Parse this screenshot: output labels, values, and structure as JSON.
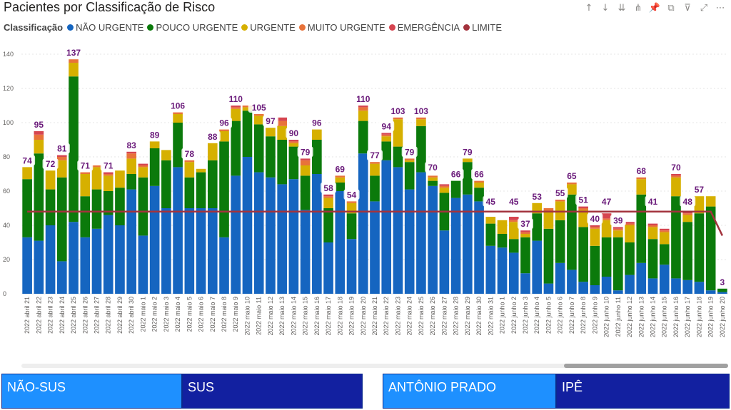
{
  "title": "Pacientes por Classificação de Risco",
  "toolbar": [
    {
      "name": "drill-up-icon",
      "glyph": "↑"
    },
    {
      "name": "drill-down-icon",
      "glyph": "↓"
    },
    {
      "name": "expand-down-icon",
      "glyph": "⇊"
    },
    {
      "name": "expand-all-icon",
      "glyph": "⋔"
    },
    {
      "name": "pin-icon",
      "glyph": "📌"
    },
    {
      "name": "copy-icon",
      "glyph": "⧉"
    },
    {
      "name": "filter-icon",
      "glyph": "⊽"
    },
    {
      "name": "focus-mode-icon",
      "glyph": "⤢"
    },
    {
      "name": "more-options-icon",
      "glyph": "⋯"
    }
  ],
  "legend": {
    "title": "Classificação",
    "items": [
      {
        "label": "NÃO URGENTE",
        "color": "#1565c0"
      },
      {
        "label": "POUCO URGENTE",
        "color": "#0b7a0b"
      },
      {
        "label": "URGENTE",
        "color": "#d6b000"
      },
      {
        "label": "MUITO URGENTE",
        "color": "#e8733a"
      },
      {
        "label": "EMERGÊNCIA",
        "color": "#d64550"
      },
      {
        "label": "LIMITE",
        "color": "#a3333d"
      }
    ]
  },
  "chart_data": {
    "type": "bar",
    "stacked": true,
    "ylim": [
      0,
      140
    ],
    "yticks": [
      0,
      20,
      40,
      60,
      80,
      100,
      120,
      140
    ],
    "categories": [
      "2022 abril 21",
      "2022 abril 22",
      "2022 abril 23",
      "2022 abril 24",
      "2022 abril 25",
      "2022 abril 26",
      "2022 abril 27",
      "2022 abril 28",
      "2022 abril 29",
      "2022 abril 30",
      "2022 maio 1",
      "2022 maio 2",
      "2022 maio 3",
      "2022 maio 4",
      "2022 maio 5",
      "2022 maio 6",
      "2022 maio 7",
      "2022 maio 8",
      "2022 maio 9",
      "2022 maio 10",
      "2022 maio 11",
      "2022 maio 12",
      "2022 maio 13",
      "2022 maio 14",
      "2022 maio 15",
      "2022 maio 16",
      "2022 maio 17",
      "2022 maio 18",
      "2022 maio 19",
      "2022 maio 20",
      "2022 maio 21",
      "2022 maio 22",
      "2022 maio 23",
      "2022 maio 24",
      "2022 maio 25",
      "2022 maio 26",
      "2022 maio 27",
      "2022 maio 28",
      "2022 maio 29",
      "2022 maio 30",
      "2022 maio 31",
      "2022 junho 1",
      "2022 junho 2",
      "2022 junho 3",
      "2022 junho 4",
      "2022 junho 5",
      "2022 junho 6",
      "2022 junho 7",
      "2022 junho 8",
      "2022 junho 9",
      "2022 junho 10",
      "2022 junho 11",
      "2022 junho 12",
      "2022 junho 13",
      "2022 junho 14",
      "2022 junho 15",
      "2022 junho 16",
      "2022 junho 17",
      "2022 junho 18",
      "2022 junho 19",
      "2022 junho 20"
    ],
    "series": [
      {
        "name": "NÃO URGENTE",
        "color": "#1565c0",
        "values": [
          33,
          31,
          40,
          19,
          42,
          33,
          38,
          46,
          40,
          61,
          34,
          63,
          50,
          74,
          50,
          50,
          50,
          33,
          69,
          80,
          71,
          68,
          64,
          67,
          49,
          70,
          30,
          60,
          32,
          82,
          54,
          78,
          74,
          61,
          71,
          63,
          37,
          56,
          58,
          54,
          28,
          27,
          24,
          12,
          31,
          6,
          18,
          14,
          7,
          5,
          10,
          2,
          11,
          18,
          9,
          17,
          9,
          8,
          7,
          2,
          1
        ]
      },
      {
        "name": "POUCO URGENTE",
        "color": "#0b7a0b",
        "values": [
          34,
          51,
          21,
          49,
          85,
          24,
          23,
          14,
          22,
          9,
          34,
          22,
          28,
          26,
          18,
          21,
          28,
          56,
          32,
          27,
          28,
          24,
          26,
          19,
          20,
          20,
          20,
          5,
          15,
          19,
          15,
          11,
          12,
          16,
          27,
          3,
          22,
          10,
          19,
          8,
          13,
          8,
          8,
          21,
          16,
          32,
          25,
          44,
          32,
          23,
          23,
          31,
          19,
          40,
          23,
          12,
          48,
          34,
          40,
          49,
          2
        ]
      },
      {
        "name": "URGENTE",
        "color": "#d6b000",
        "values": [
          7,
          8,
          11,
          10,
          8,
          13,
          13,
          9,
          10,
          9,
          6,
          4,
          6,
          5,
          9,
          2,
          10,
          6,
          7,
          2,
          5,
          5,
          8,
          2,
          6,
          6,
          6,
          3,
          6,
          6,
          7,
          3,
          16,
          1,
          4,
          2,
          3,
          0,
          2,
          3,
          4,
          8,
          10,
          2,
          6,
          10,
          11,
          6,
          10,
          10,
          10,
          4,
          10,
          9,
          7,
          7,
          11,
          4,
          10,
          6,
          0
        ]
      },
      {
        "name": "MUITO URGENTE",
        "color": "#e8733a",
        "values": [
          0,
          3,
          0,
          2,
          2,
          1,
          1,
          1,
          0,
          3,
          1,
          0,
          0,
          1,
          1,
          0,
          0,
          1,
          1,
          1,
          1,
          0,
          3,
          1,
          3,
          0,
          1,
          1,
          1,
          2,
          1,
          1,
          1,
          1,
          1,
          1,
          1,
          0,
          0,
          1,
          0,
          0,
          1,
          1,
          0,
          2,
          1,
          1,
          1,
          1,
          1,
          1,
          1,
          1,
          1,
          1,
          1,
          1,
          0,
          0,
          0
        ]
      },
      {
        "name": "EMERGÊNCIA",
        "color": "#d64550",
        "values": [
          0,
          2,
          0,
          1,
          0,
          0,
          0,
          1,
          0,
          1,
          1,
          0,
          0,
          0,
          0,
          0,
          0,
          0,
          1,
          0,
          0,
          0,
          2,
          1,
          1,
          0,
          1,
          0,
          0,
          1,
          0,
          1,
          0,
          0,
          0,
          0,
          1,
          0,
          0,
          0,
          0,
          0,
          2,
          1,
          0,
          0,
          0,
          0,
          1,
          1,
          3,
          1,
          1,
          0,
          1,
          1,
          1,
          1,
          0,
          0,
          0
        ]
      }
    ],
    "totals": [
      74,
      95,
      72,
      81,
      137,
      71,
      75,
      71,
      72,
      83,
      76,
      89,
      84,
      106,
      78,
      73,
      88,
      96,
      110,
      110,
      105,
      97,
      103,
      90,
      79,
      96,
      58,
      69,
      54,
      110,
      77,
      94,
      103,
      79,
      103,
      70,
      64,
      66,
      79,
      66,
      45,
      43,
      45,
      37,
      53,
      50,
      55,
      65,
      51,
      40,
      47,
      39,
      42,
      68,
      41,
      38,
      70,
      48,
      57,
      57,
      3
    ],
    "labeled_points": [
      {
        "index": 0,
        "label": "74"
      },
      {
        "index": 1,
        "label": "95"
      },
      {
        "index": 2,
        "label": "72"
      },
      {
        "index": 3,
        "label": "81"
      },
      {
        "index": 4,
        "label": "137"
      },
      {
        "index": 5,
        "label": "71"
      },
      {
        "index": 7,
        "label": "71"
      },
      {
        "index": 9,
        "label": "83"
      },
      {
        "index": 11,
        "label": "89"
      },
      {
        "index": 13,
        "label": "106"
      },
      {
        "index": 14,
        "label": "78"
      },
      {
        "index": 16,
        "label": "88"
      },
      {
        "index": 17,
        "label": "96"
      },
      {
        "index": 18,
        "label": "110"
      },
      {
        "index": 20,
        "label": "105"
      },
      {
        "index": 21,
        "label": "97"
      },
      {
        "index": 23,
        "label": "90"
      },
      {
        "index": 24,
        "label": "79"
      },
      {
        "index": 25,
        "label": "96"
      },
      {
        "index": 26,
        "label": "58"
      },
      {
        "index": 27,
        "label": "69"
      },
      {
        "index": 28,
        "label": "54"
      },
      {
        "index": 29,
        "label": "110"
      },
      {
        "index": 30,
        "label": "77"
      },
      {
        "index": 31,
        "label": "94"
      },
      {
        "index": 32,
        "label": "103"
      },
      {
        "index": 33,
        "label": "79"
      },
      {
        "index": 34,
        "label": "103"
      },
      {
        "index": 35,
        "label": "70"
      },
      {
        "index": 37,
        "label": "66"
      },
      {
        "index": 38,
        "label": "79"
      },
      {
        "index": 39,
        "label": "66"
      },
      {
        "index": 40,
        "label": "45"
      },
      {
        "index": 42,
        "label": "45"
      },
      {
        "index": 43,
        "label": "37"
      },
      {
        "index": 44,
        "label": "53"
      },
      {
        "index": 46,
        "label": "55"
      },
      {
        "index": 47,
        "label": "65"
      },
      {
        "index": 48,
        "label": "51"
      },
      {
        "index": 49,
        "label": "40"
      },
      {
        "index": 50,
        "label": "47"
      },
      {
        "index": 51,
        "label": "39"
      },
      {
        "index": 53,
        "label": "68"
      },
      {
        "index": 54,
        "label": "41"
      },
      {
        "index": 56,
        "label": "70"
      },
      {
        "index": 57,
        "label": "48"
      },
      {
        "index": 58,
        "label": "57"
      },
      {
        "index": 60,
        "label": "3"
      }
    ],
    "limit": {
      "name": "LIMITE",
      "value": 48,
      "end_value": 34,
      "color": "#a3333d"
    }
  },
  "slicers": [
    {
      "label": "NÃO-SUS",
      "style": "light"
    },
    {
      "label": "SUS",
      "style": "dark"
    },
    {
      "label": "ANTÔNIO PRADO",
      "style": "light"
    },
    {
      "label": "IPÊ",
      "style": "dark"
    }
  ]
}
